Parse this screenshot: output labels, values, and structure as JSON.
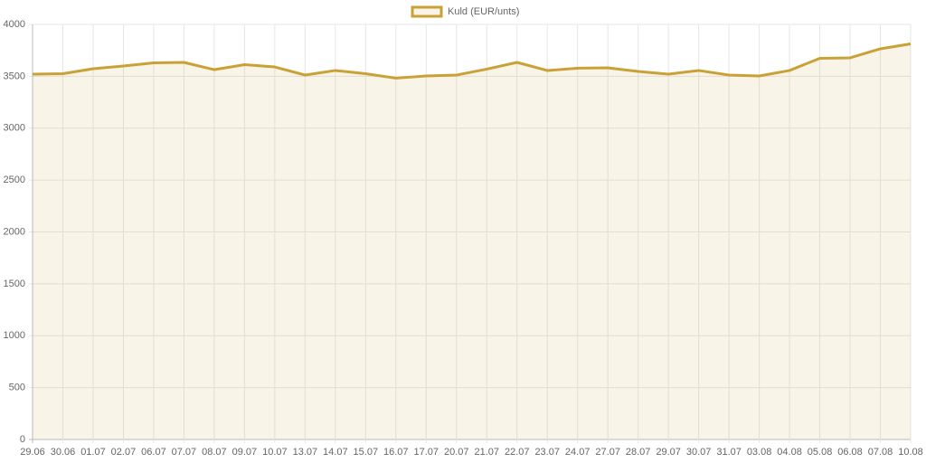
{
  "chart_data": {
    "type": "line",
    "categories": [
      "29.06",
      "30.06",
      "01.07",
      "02.07",
      "06.07",
      "07.07",
      "08.07",
      "09.07",
      "10.07",
      "13.07",
      "14.07",
      "15.07",
      "16.07",
      "17.07",
      "20.07",
      "21.07",
      "22.07",
      "23.07",
      "24.07",
      "27.07",
      "28.07",
      "29.07",
      "30.07",
      "31.07",
      "03.08",
      "04.08",
      "05.08",
      "06.08",
      "07.08",
      "10.08"
    ],
    "series": [
      {
        "name": "Kuld (EUR/unts)",
        "color": "#c9a136",
        "fill_color": "rgba(201,161,54,0.12)",
        "values": [
          3521,
          3525,
          3573,
          3599,
          3630,
          3634,
          3564,
          3612,
          3590,
          3512,
          3556,
          3525,
          3482,
          3503,
          3512,
          3569,
          3634,
          3556,
          3578,
          3582,
          3547,
          3521,
          3556,
          3512,
          3503,
          3556,
          3673,
          3678,
          3765,
          3813
        ]
      }
    ],
    "ylim": [
      0,
      4000
    ],
    "yticks": [
      0,
      500,
      1000,
      1500,
      2000,
      2500,
      3000,
      3500,
      4000
    ],
    "grid": true,
    "legend": "top"
  }
}
